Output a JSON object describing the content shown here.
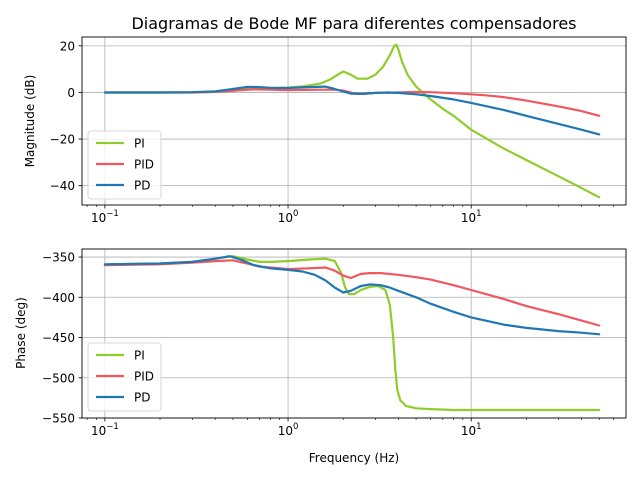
{
  "figure": {
    "title": "Diagramas de Bode MF para diferentes compensadores",
    "xlabel": "Frequency (Hz)"
  },
  "chart_data": [
    {
      "type": "line",
      "title": "Diagramas de Bode MF para diferentes compensadores",
      "xlabel": "",
      "ylabel": "Magnitude (dB)",
      "x_scale": "log",
      "xlim": [
        0.075,
        70
      ],
      "ylim": [
        -48.3,
        23.8
      ],
      "x_ticks": [
        {
          "value": 0.1,
          "base": "10",
          "exp": "−1"
        },
        {
          "value": 1,
          "base": "10",
          "exp": "0"
        },
        {
          "value": 10,
          "base": "10",
          "exp": "1"
        }
      ],
      "y_ticks": [
        20,
        0,
        -20,
        -40
      ],
      "grid": true,
      "legend": "lower-left",
      "series": [
        {
          "name": "PI",
          "color": "#8fcc2c",
          "x": [
            0.1,
            0.2,
            0.3,
            0.4,
            0.5,
            0.6,
            0.8,
            1.0,
            1.2,
            1.5,
            1.7,
            1.9,
            2.0,
            2.2,
            2.4,
            2.7,
            3.0,
            3.3,
            3.6,
            3.8,
            3.9,
            4.0,
            4.2,
            4.5,
            5.0,
            5.5,
            6,
            7,
            8,
            10,
            15,
            20,
            30,
            40,
            50
          ],
          "y": [
            0,
            0,
            0,
            0.2,
            0.8,
            1.6,
            1.9,
            2.1,
            2.6,
            3.8,
            5.6,
            8.0,
            9.0,
            7.6,
            5.9,
            5.9,
            7.6,
            11.0,
            16.0,
            20.0,
            20.5,
            18.5,
            13.0,
            7.5,
            2.5,
            -0.5,
            -3.0,
            -7.0,
            -10.0,
            -16.0,
            -24.0,
            -29.0,
            -36.0,
            -41.0,
            -45.0
          ]
        },
        {
          "name": "PID",
          "color": "#f0575f",
          "x": [
            0.1,
            0.3,
            0.45,
            0.55,
            0.65,
            0.8,
            1.0,
            1.5,
            1.8,
            2.0,
            2.3,
            2.6,
            3.0,
            3.5,
            4.0,
            5,
            6,
            8,
            10,
            12,
            15,
            20,
            30,
            40,
            50
          ],
          "y": [
            0,
            0,
            0.4,
            1.0,
            1.3,
            1.2,
            1.0,
            1.2,
            1.2,
            0.8,
            -0.4,
            -0.6,
            -0.2,
            -0.1,
            0.0,
            0.2,
            0.1,
            -0.3,
            -0.8,
            -1.2,
            -2.0,
            -3.5,
            -6.0,
            -8.0,
            -10.0
          ]
        },
        {
          "name": "PD",
          "color": "#1f77b4",
          "x": [
            0.1,
            0.2,
            0.3,
            0.4,
            0.5,
            0.6,
            0.7,
            0.8,
            1.0,
            1.3,
            1.6,
            1.8,
            2.0,
            2.2,
            2.5,
            3.0,
            3.5,
            4.0,
            5,
            6,
            8,
            10,
            15,
            20,
            30,
            40,
            50
          ],
          "y": [
            0,
            0,
            0.1,
            0.5,
            1.5,
            2.4,
            2.3,
            2.0,
            1.9,
            2.3,
            2.5,
            1.5,
            0.4,
            -0.5,
            -0.6,
            -0.2,
            0.0,
            -0.2,
            -0.8,
            -1.5,
            -3.0,
            -4.5,
            -7.5,
            -10.0,
            -13.5,
            -16.0,
            -18.0
          ]
        }
      ]
    },
    {
      "type": "line",
      "xlabel": "Frequency (Hz)",
      "ylabel": "Phase (deg)",
      "x_scale": "log",
      "xlim": [
        0.075,
        70
      ],
      "ylim": [
        -550,
        -340
      ],
      "x_ticks": [
        {
          "value": 0.1,
          "base": "10",
          "exp": "−1"
        },
        {
          "value": 1,
          "base": "10",
          "exp": "0"
        },
        {
          "value": 10,
          "base": "10",
          "exp": "1"
        }
      ],
      "y_ticks": [
        -350,
        -400,
        -450,
        -500,
        -550
      ],
      "grid": true,
      "legend": "lower-left",
      "series": [
        {
          "name": "PI",
          "color": "#8fcc2c",
          "x": [
            0.1,
            0.2,
            0.3,
            0.4,
            0.5,
            0.6,
            0.7,
            0.8,
            1.0,
            1.3,
            1.6,
            1.8,
            1.95,
            2.05,
            2.15,
            2.3,
            2.5,
            2.8,
            3.1,
            3.4,
            3.6,
            3.75,
            3.85,
            3.95,
            4.1,
            4.4,
            5,
            6,
            8,
            10,
            20,
            50
          ],
          "y": [
            -359,
            -358,
            -356,
            -352,
            -349,
            -353,
            -356,
            -356,
            -355,
            -353,
            -352,
            -355,
            -370,
            -388,
            -396,
            -396,
            -391,
            -387,
            -386,
            -391,
            -410,
            -450,
            -490,
            -515,
            -528,
            -535,
            -538,
            -539,
            -540,
            -540,
            -540,
            -540
          ]
        },
        {
          "name": "PID",
          "color": "#f0575f",
          "x": [
            0.1,
            0.2,
            0.3,
            0.4,
            0.5,
            0.6,
            0.7,
            0.8,
            1.0,
            1.3,
            1.6,
            1.8,
            2.0,
            2.2,
            2.5,
            2.8,
            3.2,
            4.0,
            5,
            6,
            8,
            10,
            15,
            20,
            30,
            40,
            50
          ],
          "y": [
            -360,
            -359,
            -357,
            -355,
            -354,
            -358,
            -362,
            -363,
            -365,
            -364,
            -363,
            -367,
            -373,
            -376,
            -371,
            -370,
            -370,
            -372,
            -375,
            -378,
            -385,
            -391,
            -402,
            -411,
            -421,
            -429,
            -435
          ]
        },
        {
          "name": "PD",
          "color": "#1f77b4",
          "x": [
            0.1,
            0.2,
            0.3,
            0.4,
            0.48,
            0.55,
            0.65,
            0.8,
            1.0,
            1.2,
            1.4,
            1.6,
            1.8,
            2.0,
            2.2,
            2.5,
            2.8,
            3.2,
            3.6,
            4.0,
            5,
            6,
            8,
            10,
            15,
            20,
            30,
            40,
            50
          ],
          "y": [
            -359,
            -358,
            -356,
            -352,
            -349,
            -353,
            -360,
            -364,
            -366,
            -368,
            -372,
            -379,
            -388,
            -394,
            -392,
            -386,
            -384,
            -385,
            -388,
            -392,
            -400,
            -408,
            -418,
            -425,
            -434,
            -438,
            -442,
            -444,
            -446
          ]
        }
      ]
    }
  ]
}
